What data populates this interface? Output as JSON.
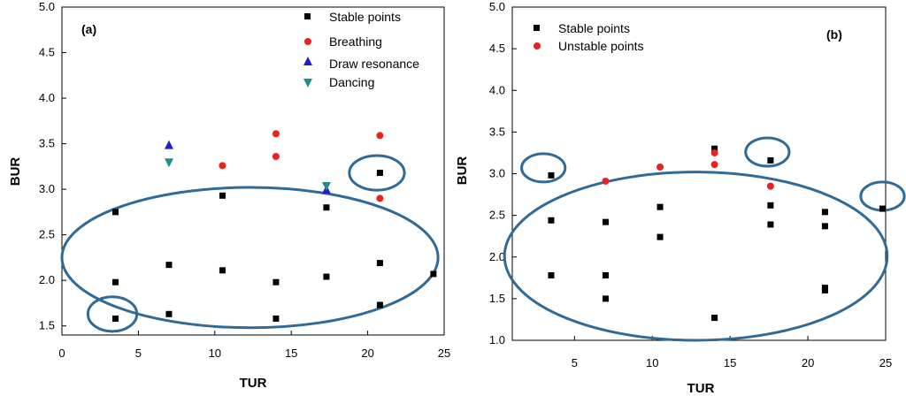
{
  "chart_data": [
    {
      "type": "scatter",
      "panel_label": "(a)",
      "xlabel": "TUR",
      "ylabel": "BUR",
      "xlim": [
        0,
        25
      ],
      "ylim": [
        1.4,
        5.0
      ],
      "xticks": [
        "0",
        "5",
        "10",
        "15",
        "20",
        "25"
      ],
      "yticks": [
        "1.5",
        "2.0",
        "2.5",
        "3.0",
        "3.5",
        "4.0",
        "4.5",
        "5.0"
      ],
      "legend_position": "top-right",
      "series": [
        {
          "name": "Stable points",
          "marker": "square",
          "color": "#000000",
          "points": [
            [
              3.5,
              2.75
            ],
            [
              3.5,
              1.98
            ],
            [
              3.5,
              1.58
            ],
            [
              7,
              2.17
            ],
            [
              7,
              1.63
            ],
            [
              10.5,
              2.93
            ],
            [
              10.5,
              2.11
            ],
            [
              14,
              1.98
            ],
            [
              14,
              1.58
            ],
            [
              17.3,
              2.8
            ],
            [
              17.3,
              2.04
            ],
            [
              20.8,
              3.18
            ],
            [
              20.8,
              2.19
            ],
            [
              20.8,
              1.73
            ],
            [
              24.3,
              2.07
            ]
          ]
        },
        {
          "name": "Breathing",
          "marker": "circle",
          "color": "#e8231e",
          "points": [
            [
              10.5,
              3.26
            ],
            [
              14,
              3.61
            ],
            [
              14,
              3.36
            ],
            [
              20.8,
              3.59
            ],
            [
              20.8,
              2.9
            ]
          ]
        },
        {
          "name": "Draw resonance",
          "marker": "triangle-up",
          "color": "#1f1fd1",
          "points": [
            [
              7,
              3.49
            ],
            [
              17.3,
              3.0
            ]
          ]
        },
        {
          "name": "Dancing",
          "marker": "triangle-down",
          "color": "#1d8f8f",
          "points": [
            [
              7,
              3.29
            ],
            [
              17.3,
              3.03
            ]
          ]
        }
      ],
      "annotations": [
        {
          "shape": "ellipse",
          "center": [
            12.3,
            2.25
          ],
          "rx": 12.3,
          "ry": 0.77
        },
        {
          "shape": "ellipse",
          "center": [
            3.3,
            1.63
          ],
          "rx": 1.6,
          "ry": 0.19
        },
        {
          "shape": "ellipse",
          "center": [
            20.6,
            3.18
          ],
          "rx": 1.8,
          "ry": 0.19
        }
      ]
    },
    {
      "type": "scatter",
      "panel_label": "(b)",
      "xlabel": "TUR",
      "ylabel": "BUR",
      "xlim": [
        1,
        25
      ],
      "ylim": [
        1.0,
        5.0
      ],
      "xticks": [
        "5",
        "10",
        "15",
        "20",
        "25"
      ],
      "yticks": [
        "1.0",
        "1.5",
        "2.0",
        "2.5",
        "3.0",
        "3.5",
        "4.0",
        "4.5",
        "5.0"
      ],
      "legend_position": "top-left",
      "series": [
        {
          "name": "Stable points",
          "marker": "square",
          "color": "#000000",
          "points": [
            [
              3.5,
              2.98
            ],
            [
              3.5,
              2.44
            ],
            [
              3.5,
              1.78
            ],
            [
              7,
              2.42
            ],
            [
              7,
              1.78
            ],
            [
              7,
              1.5
            ],
            [
              10.5,
              2.6
            ],
            [
              10.5,
              2.24
            ],
            [
              14,
              3.3
            ],
            [
              14,
              1.27
            ],
            [
              17.6,
              3.16
            ],
            [
              17.6,
              2.62
            ],
            [
              17.6,
              2.39
            ],
            [
              21.1,
              2.54
            ],
            [
              21.1,
              2.37
            ],
            [
              21.1,
              1.63
            ],
            [
              21.1,
              1.6
            ],
            [
              24.8,
              2.58
            ]
          ]
        },
        {
          "name": "Unstable points",
          "marker": "circle",
          "color": "#e8231e",
          "points": [
            [
              7,
              2.91
            ],
            [
              10.5,
              3.08
            ],
            [
              14,
              3.25
            ],
            [
              14,
              3.11
            ],
            [
              17.6,
              2.85
            ]
          ]
        }
      ],
      "annotations": [
        {
          "shape": "ellipse",
          "center": [
            12.8,
            2.01
          ],
          "rx": 12.3,
          "ry": 1.01
        },
        {
          "shape": "ellipse",
          "center": [
            3.0,
            3.07
          ],
          "rx": 1.4,
          "ry": 0.17
        },
        {
          "shape": "ellipse",
          "center": [
            17.4,
            3.26
          ],
          "rx": 1.4,
          "ry": 0.17
        },
        {
          "shape": "ellipse",
          "center": [
            24.8,
            2.73
          ],
          "rx": 1.4,
          "ry": 0.17
        }
      ]
    }
  ]
}
